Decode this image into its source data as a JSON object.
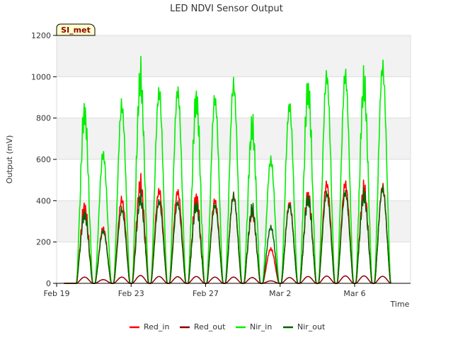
{
  "chart_data": {
    "type": "line",
    "title": "LED NDVI Sensor Output",
    "badge": "SI_met",
    "xlabel": "Time",
    "ylabel": "Output (mV)",
    "ylim": [
      0,
      1200
    ],
    "yticks": [
      0,
      200,
      400,
      600,
      800,
      1000,
      1200
    ],
    "xlim": [
      "2024-02-19",
      "2024-03-09"
    ],
    "xticks": [
      {
        "date": "2024-02-19",
        "label": "Feb 19"
      },
      {
        "date": "2024-02-23",
        "label": "Feb 23"
      },
      {
        "date": "2024-02-27",
        "label": "Feb 27"
      },
      {
        "date": "2024-03-02",
        "label": "Mar 2"
      },
      {
        "date": "2024-03-06",
        "label": "Mar 6"
      }
    ],
    "grid": "horizontal bands",
    "legend_position": "bottom",
    "day_peaks": [
      {
        "date": "2024-02-20",
        "Red_in": 410,
        "Red_out": 30,
        "Nir_in": 920,
        "Nir_out": 370
      },
      {
        "date": "2024-02-21",
        "Red_in": 280,
        "Red_out": 18,
        "Nir_in": 655,
        "Nir_out": 265
      },
      {
        "date": "2024-02-22",
        "Red_in": 425,
        "Red_out": 30,
        "Nir_in": 900,
        "Nir_out": 375
      },
      {
        "date": "2024-02-23",
        "Red_in": 535,
        "Red_out": 38,
        "Nir_in": 1105,
        "Nir_out": 460
      },
      {
        "date": "2024-02-24",
        "Red_in": 470,
        "Red_out": 33,
        "Nir_in": 970,
        "Nir_out": 415
      },
      {
        "date": "2024-02-25",
        "Red_in": 465,
        "Red_out": 32,
        "Nir_in": 975,
        "Nir_out": 410
      },
      {
        "date": "2024-02-26",
        "Red_in": 460,
        "Red_out": 33,
        "Nir_in": 990,
        "Nir_out": 420
      },
      {
        "date": "2024-02-27",
        "Red_in": 420,
        "Red_out": 30,
        "Nir_in": 935,
        "Nir_out": 395
      },
      {
        "date": "2024-02-28",
        "Red_in": 445,
        "Red_out": 30,
        "Nir_in": 1005,
        "Nir_out": 440
      },
      {
        "date": "2024-02-29",
        "Red_in": 390,
        "Red_out": 28,
        "Nir_in": 845,
        "Nir_out": 400
      },
      {
        "date": "2024-03-01",
        "Red_in": 175,
        "Red_out": 12,
        "Nir_in": 625,
        "Nir_out": 285
      },
      {
        "date": "2024-03-02",
        "Red_in": 405,
        "Red_out": 28,
        "Nir_in": 900,
        "Nir_out": 395
      },
      {
        "date": "2024-03-03",
        "Red_in": 475,
        "Red_out": 33,
        "Nir_in": 1045,
        "Nir_out": 455
      },
      {
        "date": "2024-03-04",
        "Red_in": 505,
        "Red_out": 35,
        "Nir_in": 1050,
        "Nir_out": 455
      },
      {
        "date": "2024-03-05",
        "Red_in": 505,
        "Red_out": 36,
        "Nir_in": 1055,
        "Nir_out": 460
      },
      {
        "date": "2024-03-06",
        "Red_in": 510,
        "Red_out": 36,
        "Nir_in": 1075,
        "Nir_out": 475
      },
      {
        "date": "2024-03-07",
        "Red_in": 490,
        "Red_out": 34,
        "Nir_in": 1095,
        "Nir_out": 480
      }
    ],
    "series": [
      {
        "name": "Red_in",
        "color": "#ff0000"
      },
      {
        "name": "Red_out",
        "color": "#8b0000"
      },
      {
        "name": "Nir_in",
        "color": "#00ee00"
      },
      {
        "name": "Nir_out",
        "color": "#006400"
      }
    ]
  }
}
